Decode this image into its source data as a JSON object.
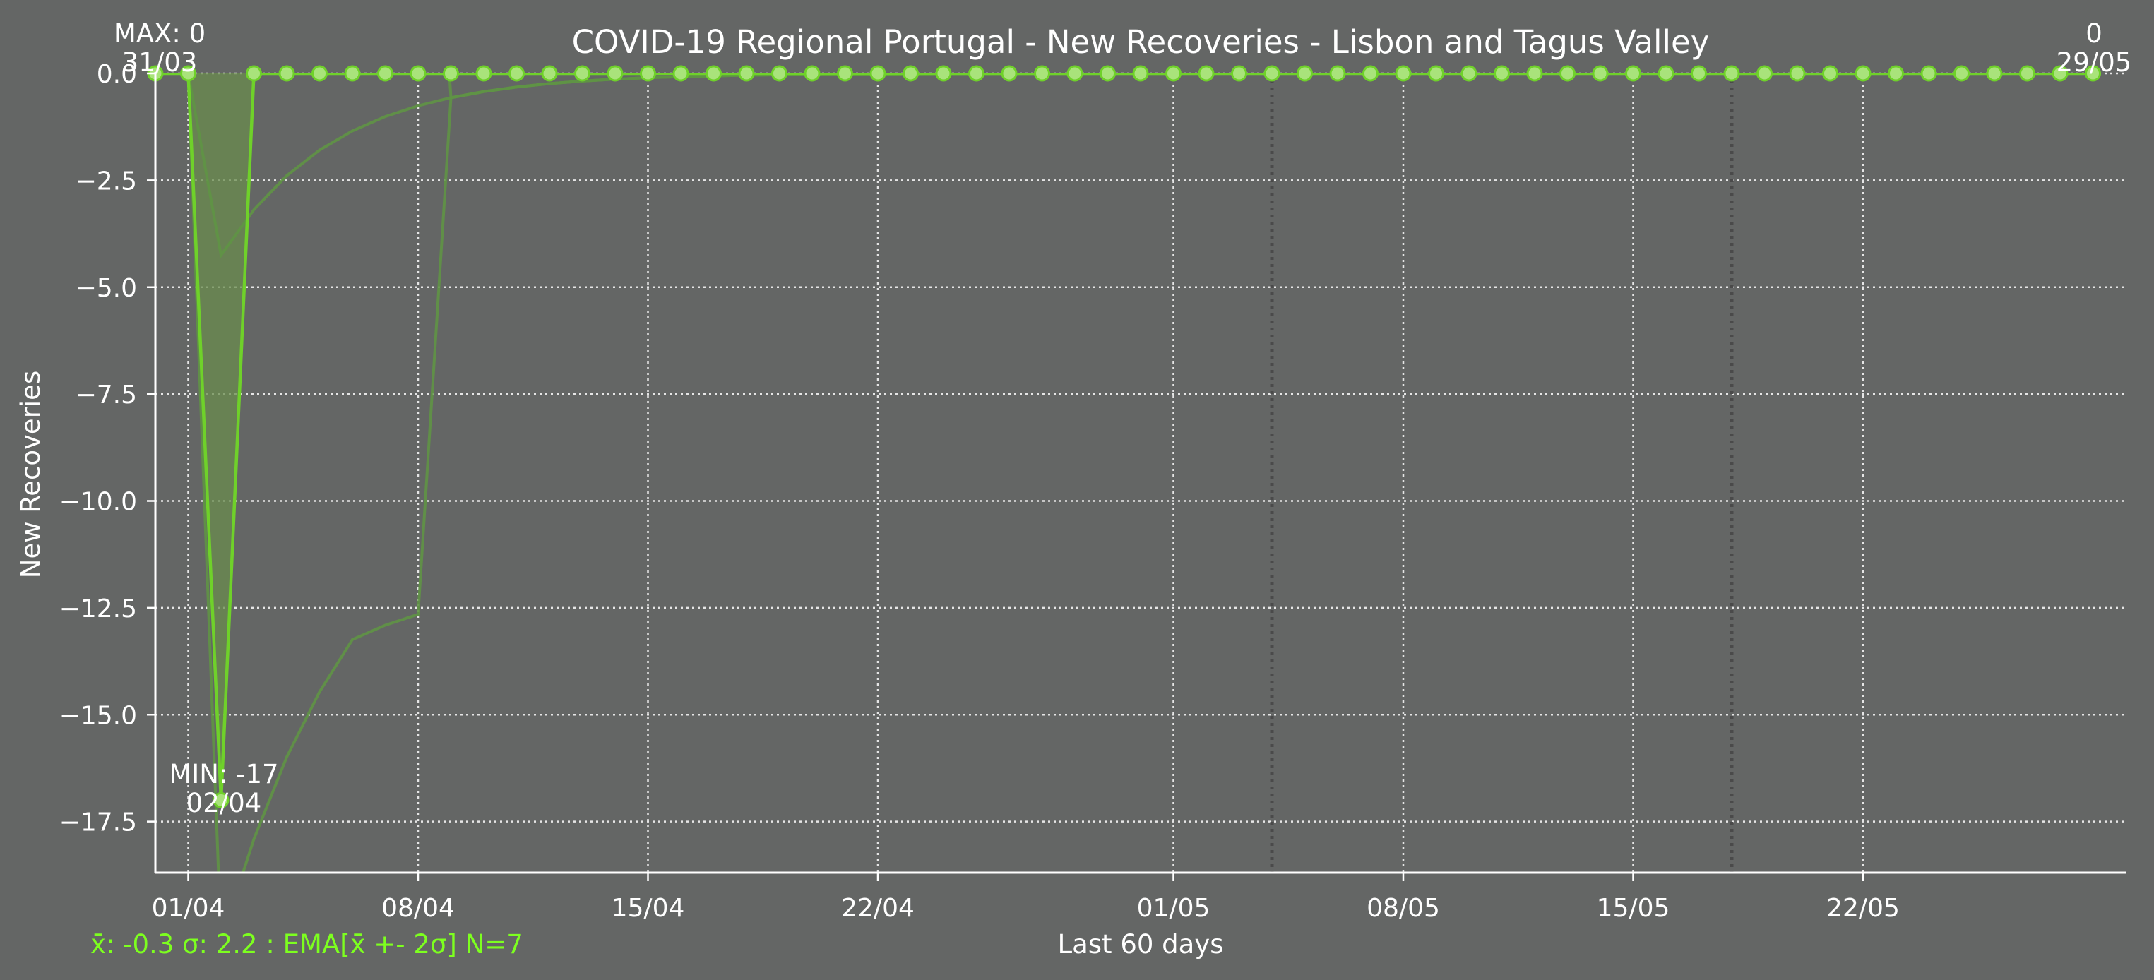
{
  "chart_data": {
    "type": "line",
    "title": "COVID-19 Regional Portugal - New Recoveries - Lisbon and Tagus Valley",
    "xlabel": "Last 60 days",
    "ylabel": "New Recoveries",
    "footer_stats": "x̄: -0.3 σ: 2.2 : EMA[x̄ +- 2σ] N=7",
    "ylim": [
      -18.7,
      0.0
    ],
    "y_ticks": [
      0.0,
      -2.5,
      -5.0,
      -7.5,
      -10.0,
      -12.5,
      -15.0,
      -17.5
    ],
    "y_tick_labels": [
      "0.0",
      "−2.5",
      "−5.0",
      "−7.5",
      "−10.0",
      "−12.5",
      "−15.0",
      "−17.5"
    ],
    "x_tick_labels": [
      "01/04",
      "08/04",
      "15/04",
      "22/04",
      "01/05",
      "08/05",
      "15/05",
      "22/05"
    ],
    "x_tick_day_index": [
      1,
      8,
      15,
      22,
      31,
      38,
      45,
      52
    ],
    "weekend_markers_day_index": [
      34,
      48
    ],
    "grid": true,
    "start_date": "31/03",
    "end_date": "29/05",
    "annotations": {
      "max": {
        "label": "MAX: 0",
        "date": "31/03"
      },
      "min": {
        "label": "MIN: -17",
        "date": "02/04"
      },
      "last": {
        "value": "0",
        "date": "29/05"
      }
    },
    "series": [
      {
        "values": [
          0,
          0,
          -17,
          0,
          0,
          0,
          0,
          0,
          0,
          0,
          0,
          0,
          0,
          0,
          0,
          0,
          0,
          0,
          0,
          0,
          0,
          0,
          0,
          0,
          0,
          0,
          0,
          0,
          0,
          0,
          0,
          0,
          0,
          0,
          0,
          0,
          0,
          0,
          0,
          0,
          0,
          0,
          0,
          0,
          0,
          0,
          0,
          0,
          0,
          0,
          0,
          0,
          0,
          0,
          0,
          0,
          0,
          0,
          0,
          0
        ]
      }
    ],
    "ema_n": 7,
    "colors": {
      "background": "#646665",
      "line": "#6fd12a",
      "marker_fill": "#a9e37b",
      "band_fill": "#6a8c4e",
      "ema_line": "#5f9445",
      "footer_text": "#7dff1f",
      "text": "#ffffff",
      "grid": "#e6e6e6",
      "weekend_line": "#4a4a4a"
    }
  }
}
